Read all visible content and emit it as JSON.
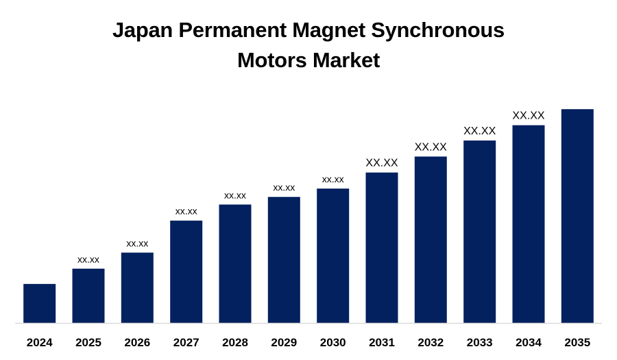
{
  "chart_data": {
    "type": "bar",
    "title_lines": [
      "Japan Permanent Magnet Synchronous",
      "Motors Market"
    ],
    "categories": [
      "2024",
      "2025",
      "2026",
      "2027",
      "2028",
      "2029",
      "2030",
      "2031",
      "2032",
      "2033",
      "2034",
      "2035"
    ],
    "values": [
      56,
      78,
      101,
      147,
      170,
      181,
      193,
      216,
      239,
      262,
      284,
      307
    ],
    "data_labels": [
      "",
      "xx.xx",
      "xx.xx",
      "xx.xx",
      "xx.xx",
      "xx.xx",
      "xx.xx",
      "XX.XX",
      "XX.XX",
      "XX.XX",
      "XX.XX",
      ""
    ],
    "xlabel": "",
    "ylabel": "",
    "ylim": [
      0,
      320
    ],
    "grid": false,
    "legend": "none",
    "bar_color": "#03215E",
    "axis_color": "#D9D9D9"
  }
}
